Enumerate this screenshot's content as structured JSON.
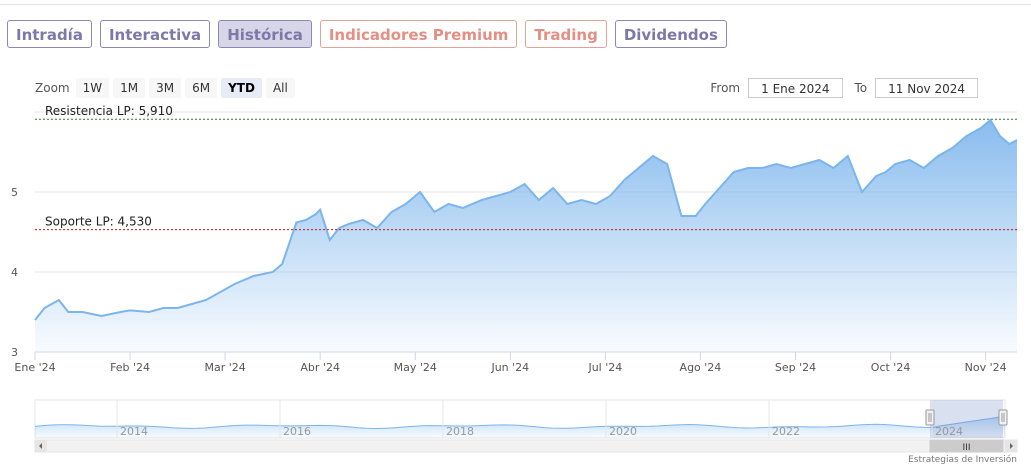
{
  "tabs": [
    {
      "label": "Intradía",
      "style": "purple"
    },
    {
      "label": "Interactiva",
      "style": "purple"
    },
    {
      "label": "Histórica",
      "style": "active"
    },
    {
      "label": "Indicadores Premium",
      "style": "salmon"
    },
    {
      "label": "Trading",
      "style": "salmon"
    },
    {
      "label": "Dividendos",
      "style": "purple"
    }
  ],
  "zoom": {
    "label": "Zoom",
    "buttons": [
      "1W",
      "1M",
      "3M",
      "6M",
      "YTD",
      "All"
    ],
    "selected": "YTD"
  },
  "range": {
    "from_label": "From",
    "from_value": "1 Ene 2024",
    "to_label": "To",
    "to_value": "11 Nov 2024"
  },
  "credit": "Estrategias de Inversión",
  "colors": {
    "line": "#7cb5ec",
    "area_top": "#7cb5ec",
    "resistance": "#2e7d32",
    "support": "#b71c1c"
  },
  "chart_data": {
    "type": "area",
    "x_unit": "month index (0 = 1 Jan 2024)",
    "x": [
      0,
      0.1,
      0.25,
      0.35,
      0.5,
      0.7,
      0.9,
      1.0,
      1.2,
      1.35,
      1.5,
      1.65,
      1.8,
      1.95,
      2.1,
      2.3,
      2.5,
      2.6,
      2.75,
      2.85,
      2.95,
      3.0,
      3.1,
      3.2,
      3.3,
      3.45,
      3.6,
      3.75,
      3.9,
      4.05,
      4.2,
      4.35,
      4.5,
      4.7,
      4.85,
      5.0,
      5.15,
      5.3,
      5.45,
      5.6,
      5.75,
      5.9,
      6.05,
      6.2,
      6.35,
      6.5,
      6.65,
      6.8,
      6.95,
      7.05,
      7.2,
      7.35,
      7.5,
      7.65,
      7.8,
      7.95,
      8.1,
      8.25,
      8.4,
      8.55,
      8.7,
      8.85,
      8.95,
      9.05,
      9.2,
      9.35,
      9.5,
      9.65,
      9.8,
      9.95,
      10.05,
      10.15,
      10.25,
      10.33
    ],
    "y": [
      3.4,
      3.55,
      3.65,
      3.5,
      3.5,
      3.45,
      3.5,
      3.52,
      3.5,
      3.55,
      3.55,
      3.6,
      3.65,
      3.75,
      3.85,
      3.95,
      4.0,
      4.1,
      4.62,
      4.65,
      4.72,
      4.78,
      4.4,
      4.55,
      4.6,
      4.65,
      4.55,
      4.75,
      4.85,
      5.0,
      4.75,
      4.85,
      4.8,
      4.9,
      4.95,
      5.0,
      5.1,
      4.9,
      5.05,
      4.85,
      4.9,
      4.85,
      4.95,
      5.15,
      5.3,
      5.45,
      5.35,
      4.7,
      4.7,
      4.85,
      5.05,
      5.25,
      5.3,
      5.3,
      5.35,
      5.3,
      5.35,
      5.4,
      5.3,
      5.45,
      5.0,
      5.2,
      5.25,
      5.35,
      5.4,
      5.3,
      5.45,
      5.55,
      5.7,
      5.8,
      5.9,
      5.7,
      5.6,
      5.65
    ],
    "xlim": [
      0,
      10.33
    ],
    "ylim": [
      3,
      6
    ],
    "y_ticks": [
      3,
      4,
      5
    ],
    "x_ticks": [
      {
        "x": 0,
        "label": "Ene '24"
      },
      {
        "x": 1,
        "label": "Feb '24"
      },
      {
        "x": 2,
        "label": "Mar '24"
      },
      {
        "x": 3,
        "label": "Abr '24"
      },
      {
        "x": 4,
        "label": "May '24"
      },
      {
        "x": 5,
        "label": "Jun '24"
      },
      {
        "x": 6,
        "label": "Jul '24"
      },
      {
        "x": 7,
        "label": "Ago '24"
      },
      {
        "x": 8,
        "label": "Sep '24"
      },
      {
        "x": 9,
        "label": "Oct '24"
      },
      {
        "x": 10,
        "label": "Nov '24"
      }
    ],
    "reference_lines": [
      {
        "name": "resistance",
        "label": "Resistencia LP: 5,910",
        "value": 5.91,
        "color": "#2e7d32"
      },
      {
        "name": "support",
        "label": "Soporte LP: 4,530",
        "value": 4.53,
        "color": "#b71c1c"
      }
    ],
    "grid": true,
    "navigator": {
      "year_labels": [
        "2014",
        "2016",
        "2018",
        "2020",
        "2022",
        "2024"
      ],
      "handle_grip": "III"
    }
  }
}
